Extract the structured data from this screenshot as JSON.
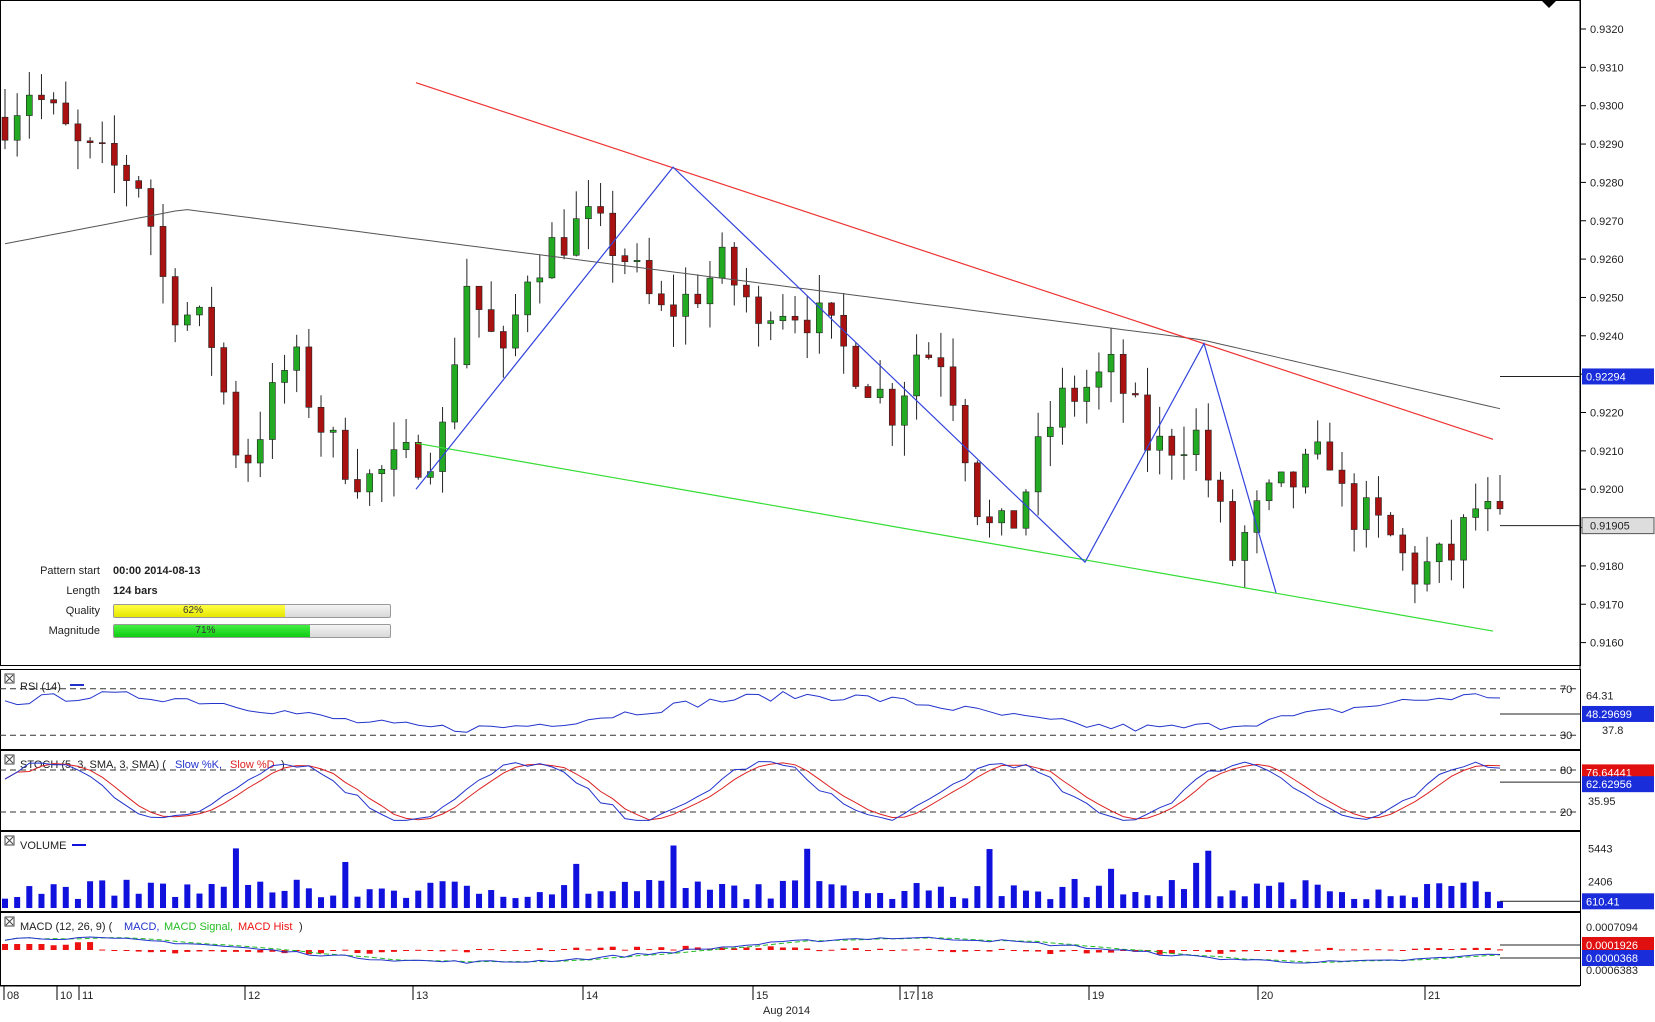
{
  "colors": {
    "bull": "#22aa22",
    "bear": "#aa1111",
    "resistance": "#ee3333",
    "support": "#33dd33",
    "pattern": "#3344dd",
    "ma": "#555555",
    "rsi": "#2233cc",
    "stoch_k": "#2233cc",
    "stoch_d": "#dd2222",
    "volume": "#1111dd",
    "macd": "#2233cc",
    "macd_signal": "#22bb22",
    "macd_hist": "#ee1111",
    "tag_bg": "#1a2ddb",
    "tag_red": "#e01010"
  },
  "pattern_info": {
    "start_label": "Pattern start",
    "start_value": "00:00 2014-08-13",
    "length_label": "Length",
    "length_value": "124 bars",
    "quality_label": "Quality",
    "quality_value": "62%",
    "quality_fraction": 0.62,
    "magnitude_label": "Magnitude",
    "magnitude_value": "71%",
    "magnitude_fraction": 0.71
  },
  "price_panel": {
    "y_ticks": [
      "0.9320",
      "0.9310",
      "0.9300",
      "0.9290",
      "0.9280",
      "0.9270",
      "0.9260",
      "0.9250",
      "0.9240",
      "0.9230",
      "0.9220",
      "0.9210",
      "0.9200",
      "0.9190",
      "0.9180",
      "0.9170",
      "0.9160"
    ],
    "ma_tag": "0.92294",
    "last_tag": "0.91905"
  },
  "rsi_panel": {
    "title": "RSI (14)",
    "levels": [
      "70",
      "30"
    ],
    "ticks": [
      "64.31",
      "37.8"
    ],
    "tag": "48.29699"
  },
  "stoch_panel": {
    "title_prefix": "STOCH (5, 3, SMA, 3, SMA)",
    "k_label": "Slow %K,",
    "d_label": "Slow %D",
    "levels": [
      "80",
      "20"
    ],
    "ticks": [
      "35.95"
    ],
    "tag_d": "76.64441",
    "tag_k": "62.62956"
  },
  "volume_panel": {
    "title": "VOLUME",
    "ticks": [
      "5443",
      "2406"
    ],
    "tag": "610.41"
  },
  "macd_panel": {
    "title_prefix": "MACD (12, 26, 9)",
    "macd_label": "MACD,",
    "signal_label": "MACD Signal,",
    "hist_label": "MACD Hist",
    "ticks": [
      "0.0007094",
      "0.0006383"
    ],
    "tag_hist": "0.0001926",
    "tag_macd": "0.0000368"
  },
  "x_axis": {
    "day_labels": [
      "08",
      "10",
      "11",
      "12",
      "13",
      "14",
      "15",
      "17",
      "18",
      "19",
      "20",
      "21"
    ],
    "month_label": "Aug 2014"
  },
  "chart_data": {
    "type": "candlestick",
    "symbol_info": "price chart with falling wedge pattern",
    "y_range": [
      0.9155,
      0.9325
    ],
    "ma_reference": 0.92294,
    "last_price": 0.91905,
    "resistance_line": [
      [
        0.9306,
        0.9213
      ]
    ],
    "support_line": [
      [
        0.9212,
        0.9163
      ]
    ],
    "pattern_pivots": [
      0.92,
      0.9284,
      0.9181,
      0.9238,
      0.9173
    ],
    "candles_hint": "approximately 124 hourly bars from Aug 08 to Aug 21, 2014",
    "rsi_last": 48.29699,
    "stoch_k_last": 62.62956,
    "stoch_d_last": 76.64441,
    "volume_last": 610.41,
    "macd_hist_last": 0.0001926,
    "macd_signal_last": 3.68e-05
  }
}
